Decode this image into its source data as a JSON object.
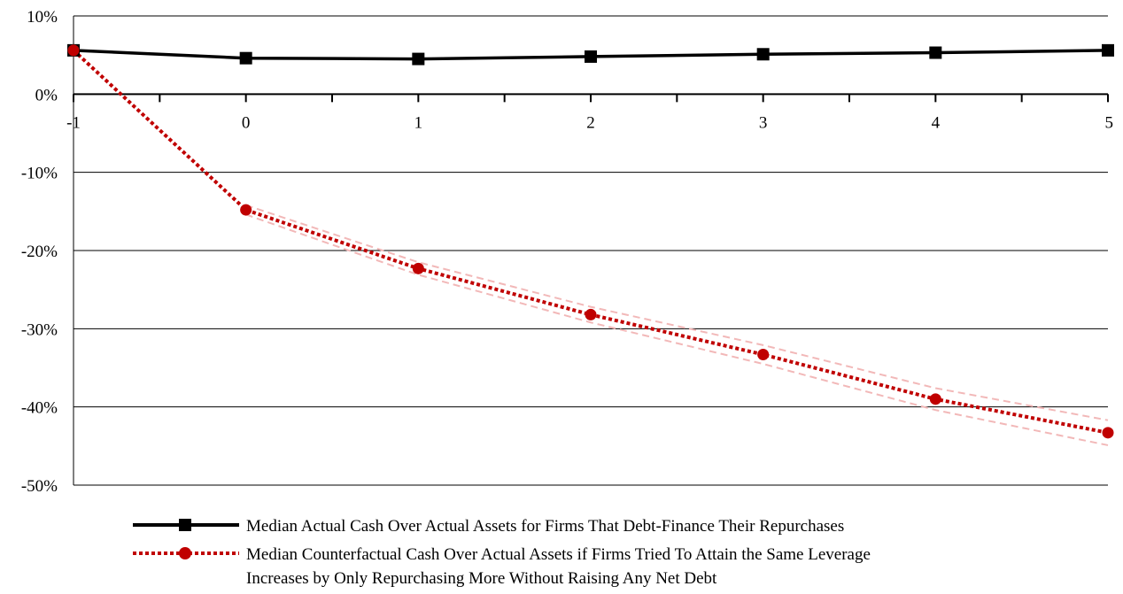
{
  "chart_data": {
    "type": "line",
    "title": "",
    "xlabel": "",
    "ylabel": "",
    "x": [
      -1,
      0,
      1,
      2,
      3,
      4,
      5
    ],
    "x_tick_labels": [
      "-1",
      "0",
      "1",
      "2",
      "3",
      "4",
      "5"
    ],
    "y_tick_labels": [
      "10%",
      "0%",
      "-10%",
      "-20%",
      "-30%",
      "-40%",
      "-50%"
    ],
    "ylim": [
      -50,
      10
    ],
    "y_unit": "%",
    "grid": true,
    "legend_position": "bottom",
    "series": [
      {
        "name": "Median Actual Cash Over Actual Assets for Firms That Debt-Finance Their Repurchases",
        "values": [
          5.6,
          4.6,
          4.5,
          4.8,
          5.1,
          5.3,
          5.6
        ],
        "color": "#000000",
        "marker": "square",
        "line_style": "solid"
      },
      {
        "name": "Median Counterfactual Cash Over Actual Assets if Firms Tried To Attain the Same Leverage\nIncreases by Only Repurchasing More Without Raising Any Net Debt",
        "values": [
          5.6,
          -14.8,
          -22.3,
          -28.2,
          -33.3,
          -39.0,
          -43.3
        ],
        "color": "#c00000",
        "marker": "circle",
        "line_style": "dotted",
        "band_color": "#f2b8b8"
      }
    ]
  }
}
